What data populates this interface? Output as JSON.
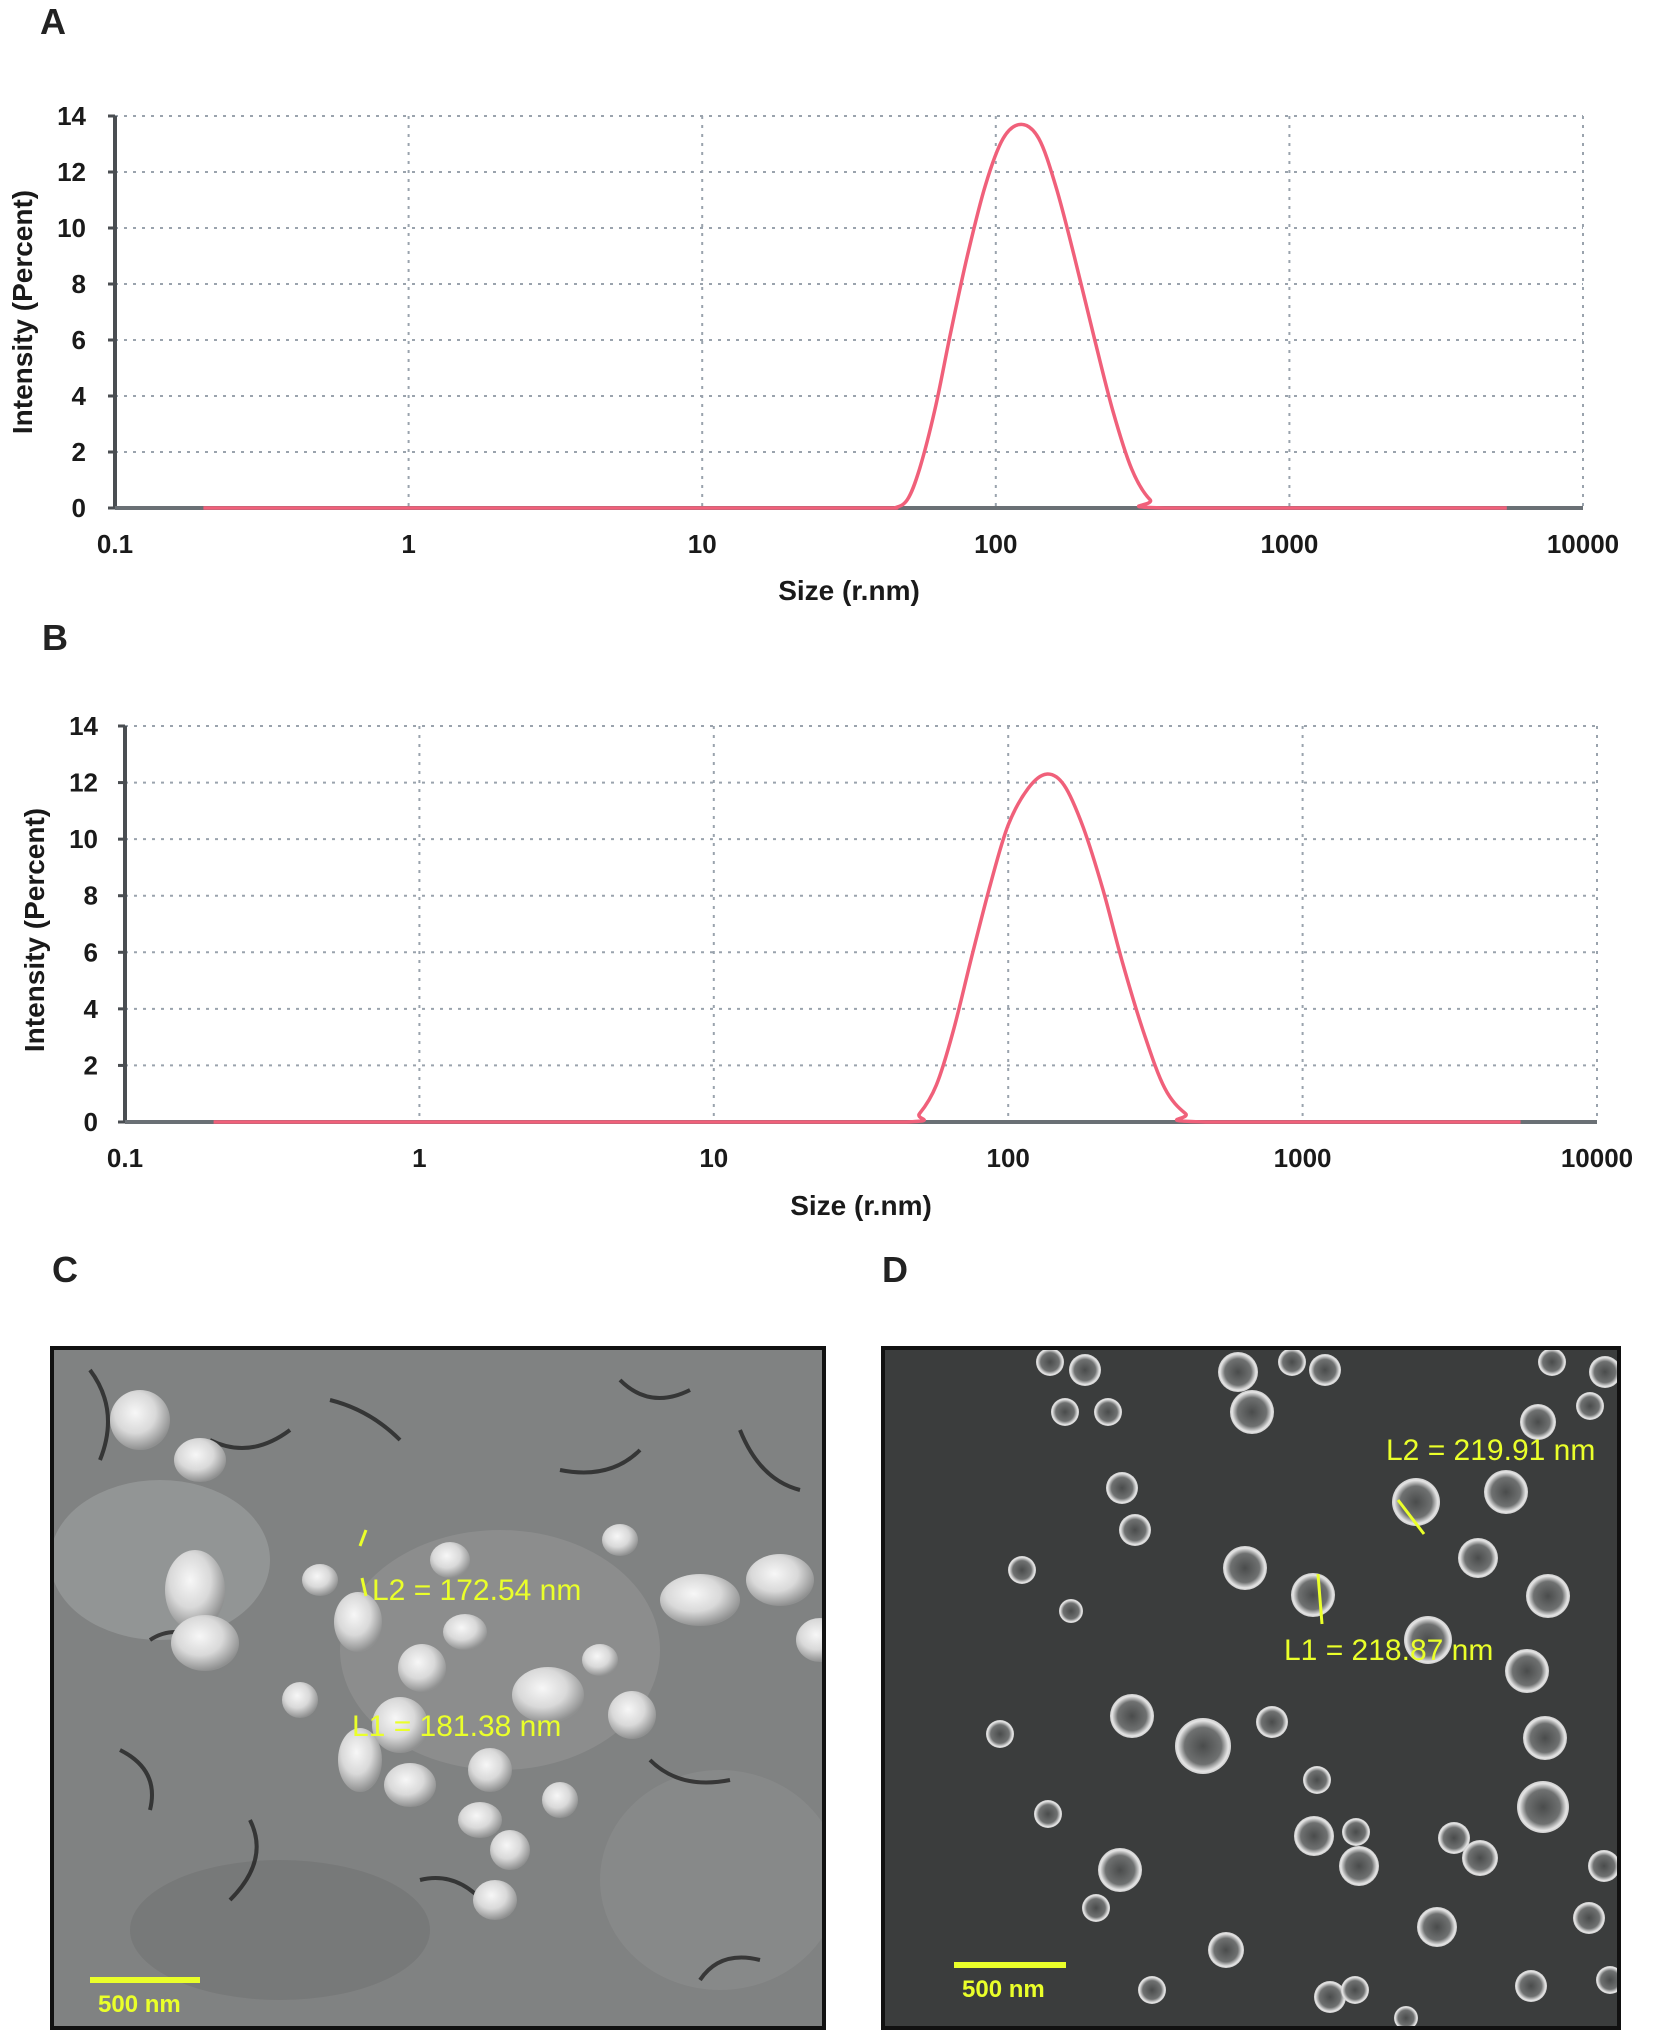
{
  "panel_labels": [
    "A",
    "B",
    "C",
    "D"
  ],
  "chart_data": [
    {
      "type": "line",
      "panel": "A",
      "xlabel": "Size (r.nm)",
      "ylabel": "Intensity (Percent)",
      "xscale": "log",
      "xlim": [
        0.1,
        10000
      ],
      "ylim": [
        0,
        14
      ],
      "grid": true,
      "xticks": [
        "0.1",
        "1",
        "10",
        "100",
        "1000",
        "10000"
      ],
      "yticks": [
        "0",
        "2",
        "4",
        "6",
        "8",
        "10",
        "12",
        "14"
      ],
      "line_color": "#f0607a",
      "series": [
        {
          "x": [
            0.2,
            1,
            10,
            40,
            45,
            50,
            55,
            62,
            70,
            80,
            92,
            106,
            122,
            140,
            160,
            185,
            215,
            250,
            290,
            335,
            390,
            5500
          ],
          "y": [
            0,
            0,
            0,
            0,
            0,
            0.3,
            1.4,
            3.5,
            6.2,
            9.0,
            11.5,
            13.2,
            13.7,
            13.2,
            11.5,
            9.0,
            6.2,
            3.5,
            1.4,
            0.3,
            0,
            0
          ]
        }
      ]
    },
    {
      "type": "line",
      "panel": "B",
      "xlabel": "Size (r.nm)",
      "ylabel": "Intensity (Percent)",
      "xscale": "log",
      "xlim": [
        0.1,
        10000
      ],
      "ylim": [
        0,
        14
      ],
      "grid": true,
      "xticks": [
        "0.1",
        "1",
        "10",
        "100",
        "1000",
        "10000"
      ],
      "yticks": [
        "0",
        "2",
        "4",
        "6",
        "8",
        "10",
        "12",
        "14"
      ],
      "line_color": "#f0607a",
      "series": [
        {
          "x": [
            0.2,
            1,
            10,
            45,
            50,
            57,
            65,
            75,
            87,
            100,
            117,
            135,
            155,
            180,
            210,
            245,
            290,
            340,
            400,
            470,
            5500
          ],
          "y": [
            0,
            0,
            0,
            0,
            0.3,
            1.3,
            3.2,
            5.8,
            8.4,
            10.5,
            11.8,
            12.3,
            11.9,
            10.4,
            8.2,
            5.6,
            3.1,
            1.2,
            0.3,
            0,
            0
          ]
        }
      ]
    }
  ],
  "sem_images": [
    {
      "panel": "C",
      "scale_bar": "500 nm",
      "measurements": [
        "L2 = 172.54 nm",
        "L1 = 181.38 nm"
      ],
      "background": "#7c7e7e"
    },
    {
      "panel": "D",
      "scale_bar": "500 nm",
      "measurements": [
        "L2 = 219.91 nm",
        "L1 = 218.87 nm"
      ],
      "background": "#3a3c3c"
    }
  ]
}
